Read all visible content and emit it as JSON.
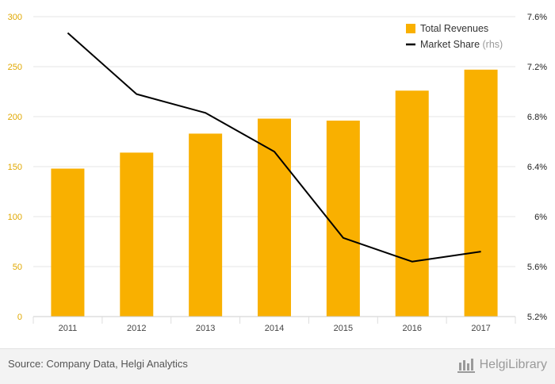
{
  "chart_data": {
    "type": "bar+line",
    "categories": [
      "2011",
      "2012",
      "2013",
      "2014",
      "2015",
      "2016",
      "2017"
    ],
    "series": [
      {
        "name": "Total Revenues",
        "kind": "bar",
        "axis": "left",
        "color": "#f9b000",
        "values": [
          148,
          164,
          183,
          198,
          196,
          226,
          247
        ]
      },
      {
        "name": "Market Share",
        "kind": "line",
        "axis": "right",
        "color": "#000000",
        "values": [
          7.47,
          6.98,
          6.83,
          6.52,
          5.83,
          5.64,
          5.72
        ]
      }
    ],
    "left_axis": {
      "ylim": [
        0,
        300
      ],
      "ticks": [
        0,
        50,
        100,
        150,
        200,
        250,
        300
      ],
      "tick_labels": [
        "0",
        "50",
        "100",
        "150",
        "200",
        "250",
        "300"
      ],
      "color": "#e0a800"
    },
    "right_axis": {
      "ylim": [
        5.2,
        7.6
      ],
      "ticks": [
        5.2,
        5.6,
        6.0,
        6.4,
        6.8,
        7.2,
        7.6
      ],
      "tick_labels": [
        "5.2%",
        "5.6%",
        "6%",
        "6.4%",
        "6.8%",
        "7.2%",
        "7.6%"
      ]
    },
    "legend": {
      "placement": "top-right",
      "entries": [
        {
          "label": "Total Revenues",
          "suffix": ""
        },
        {
          "label": "Market Share",
          "suffix": " (rhs)"
        }
      ]
    },
    "grid": true
  },
  "footer": {
    "source": "Source: Company Data, Helgi Analytics",
    "brand": "HelgiLibrary"
  }
}
